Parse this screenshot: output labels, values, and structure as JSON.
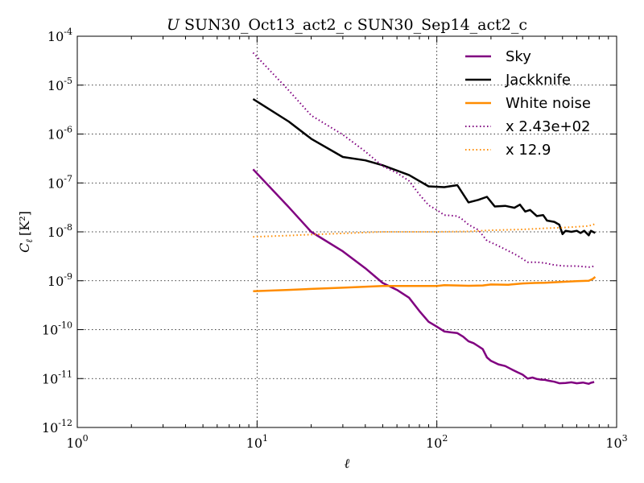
{
  "chart_data": {
    "type": "line",
    "title": "U SUN30_Oct13_act2_c SUN30_Sep14_act2_c",
    "title_symbol": "U",
    "title_rest": "SUN30_Oct13_act2_c SUN30_Sep14_act2_c",
    "xlabel": "ℓ",
    "ylabel_base": "C",
    "ylabel_sub": "ℓ",
    "ylabel_units": "[K²]",
    "xscale": "log",
    "yscale": "log",
    "xlim": [
      1,
      1000
    ],
    "ylim": [
      1e-12,
      0.0001
    ],
    "grid": true,
    "legend_position": "top-right",
    "x_ticks": [
      {
        "value": 1,
        "base": "10",
        "exp": "0"
      },
      {
        "value": 10,
        "base": "10",
        "exp": "1"
      },
      {
        "value": 100,
        "base": "10",
        "exp": "2"
      },
      {
        "value": 1000,
        "base": "10",
        "exp": "3"
      }
    ],
    "y_ticks": [
      {
        "value": 1e-12,
        "base": "10",
        "exp": "-12"
      },
      {
        "value": 1e-11,
        "base": "10",
        "exp": "-11"
      },
      {
        "value": 1e-10,
        "base": "10",
        "exp": "-10"
      },
      {
        "value": 1e-09,
        "base": "10",
        "exp": "-9"
      },
      {
        "value": 1e-08,
        "base": "10",
        "exp": "-8"
      },
      {
        "value": 1e-07,
        "base": "10",
        "exp": "-7"
      },
      {
        "value": 1e-06,
        "base": "10",
        "exp": "-6"
      },
      {
        "value": 1e-05,
        "base": "10",
        "exp": "-5"
      },
      {
        "value": 0.0001,
        "base": "10",
        "exp": "-4"
      }
    ],
    "series": [
      {
        "name": "Sky",
        "color": "#800080",
        "style": "solid",
        "points": [
          [
            9.5,
            1.9e-07
          ],
          [
            15,
            3.2e-08
          ],
          [
            20,
            1e-08
          ],
          [
            30,
            4e-09
          ],
          [
            40,
            1.8e-09
          ],
          [
            50,
            9e-10
          ],
          [
            60,
            6.5e-10
          ],
          [
            70,
            4.5e-10
          ],
          [
            80,
            2.4e-10
          ],
          [
            90,
            1.45e-10
          ],
          [
            100,
            1.15e-10
          ],
          [
            110,
            9.2e-11
          ],
          [
            120,
            8.8e-11
          ],
          [
            130,
            8.5e-11
          ],
          [
            140,
            7.2e-11
          ],
          [
            150,
            5.8e-11
          ],
          [
            160,
            5.3e-11
          ],
          [
            170,
            4.6e-11
          ],
          [
            180,
            4e-11
          ],
          [
            190,
            2.7e-11
          ],
          [
            200,
            2.3e-11
          ],
          [
            220,
            1.95e-11
          ],
          [
            240,
            1.8e-11
          ],
          [
            260,
            1.55e-11
          ],
          [
            280,
            1.35e-11
          ],
          [
            300,
            1.2e-11
          ],
          [
            320,
            1e-11
          ],
          [
            340,
            1.05e-11
          ],
          [
            360,
            9.8e-12
          ],
          [
            380,
            9.5e-12
          ],
          [
            400,
            9.4e-12
          ],
          [
            420,
            9e-12
          ],
          [
            450,
            8.6e-12
          ],
          [
            480,
            8e-12
          ],
          [
            520,
            8.1e-12
          ],
          [
            560,
            8.4e-12
          ],
          [
            600,
            8e-12
          ],
          [
            650,
            8.3e-12
          ],
          [
            700,
            7.8e-12
          ],
          [
            720,
            8.2e-12
          ],
          [
            750,
            8.5e-12
          ]
        ]
      },
      {
        "name": "Jackknife",
        "color": "#000000",
        "style": "solid",
        "points": [
          [
            9.5,
            5.2e-06
          ],
          [
            15,
            1.8e-06
          ],
          [
            20,
            8e-07
          ],
          [
            30,
            3.4e-07
          ],
          [
            40,
            2.9e-07
          ],
          [
            50,
            2.3e-07
          ],
          [
            70,
            1.45e-07
          ],
          [
            90,
            8.5e-08
          ],
          [
            110,
            8.2e-08
          ],
          [
            130,
            9e-08
          ],
          [
            150,
            4e-08
          ],
          [
            170,
            4.5e-08
          ],
          [
            190,
            5.2e-08
          ],
          [
            210,
            3.3e-08
          ],
          [
            240,
            3.4e-08
          ],
          [
            270,
            3.1e-08
          ],
          [
            290,
            3.6e-08
          ],
          [
            310,
            2.6e-08
          ],
          [
            330,
            2.8e-08
          ],
          [
            360,
            2.1e-08
          ],
          [
            390,
            2.2e-08
          ],
          [
            410,
            1.7e-08
          ],
          [
            450,
            1.6e-08
          ],
          [
            480,
            1.4e-08
          ],
          [
            500,
            9e-09
          ],
          [
            520,
            1.05e-08
          ],
          [
            560,
            1e-08
          ],
          [
            600,
            1.05e-08
          ],
          [
            630,
            9.5e-09
          ],
          [
            660,
            1.05e-08
          ],
          [
            700,
            8.5e-09
          ],
          [
            720,
            1.05e-08
          ],
          [
            760,
            9.5e-09
          ]
        ]
      },
      {
        "name": "White noise",
        "color": "#ff8c00",
        "style": "solid",
        "points": [
          [
            9.5,
            6.1e-10
          ],
          [
            15,
            6.5e-10
          ],
          [
            20,
            6.8e-10
          ],
          [
            30,
            7.2e-10
          ],
          [
            50,
            7.8e-10
          ],
          [
            70,
            7.8e-10
          ],
          [
            100,
            7.8e-10
          ],
          [
            110,
            8.1e-10
          ],
          [
            130,
            8e-10
          ],
          [
            150,
            7.9e-10
          ],
          [
            180,
            8e-10
          ],
          [
            200,
            8.4e-10
          ],
          [
            250,
            8.3e-10
          ],
          [
            300,
            8.8e-10
          ],
          [
            350,
            9e-10
          ],
          [
            400,
            9.1e-10
          ],
          [
            500,
            9.5e-10
          ],
          [
            600,
            9.8e-10
          ],
          [
            700,
            1e-09
          ],
          [
            740,
            1.1e-09
          ],
          [
            760,
            1.2e-09
          ]
        ]
      },
      {
        "name": "x 2.43e+02",
        "color": "#800080",
        "style": "dotted",
        "points": [
          [
            9.5,
            4.6e-05
          ],
          [
            15,
            7.8e-06
          ],
          [
            20,
            2.4e-06
          ],
          [
            30,
            9.7e-07
          ],
          [
            40,
            4.4e-07
          ],
          [
            50,
            2.2e-07
          ],
          [
            60,
            1.6e-07
          ],
          [
            70,
            1.1e-07
          ],
          [
            80,
            5.8e-08
          ],
          [
            90,
            3.5e-08
          ],
          [
            100,
            2.8e-08
          ],
          [
            110,
            2.2e-08
          ],
          [
            130,
            2.1e-08
          ],
          [
            140,
            1.75e-08
          ],
          [
            150,
            1.4e-08
          ],
          [
            170,
            1.1e-08
          ],
          [
            190,
            6.6e-09
          ],
          [
            210,
            5.6e-09
          ],
          [
            240,
            4.4e-09
          ],
          [
            280,
            3.3e-09
          ],
          [
            320,
            2.4e-09
          ],
          [
            360,
            2.4e-09
          ],
          [
            400,
            2.3e-09
          ],
          [
            450,
            2.1e-09
          ],
          [
            520,
            2e-09
          ],
          [
            600,
            2e-09
          ],
          [
            700,
            1.9e-09
          ],
          [
            760,
            2e-09
          ]
        ]
      },
      {
        "name": "x 12.9",
        "color": "#ff8c00",
        "style": "dotted",
        "points": [
          [
            9.5,
            7.9e-09
          ],
          [
            15,
            8.4e-09
          ],
          [
            20,
            8.8e-09
          ],
          [
            30,
            9.3e-09
          ],
          [
            50,
            1e-08
          ],
          [
            100,
            1e-08
          ],
          [
            150,
            1.02e-08
          ],
          [
            200,
            1.08e-08
          ],
          [
            300,
            1.12e-08
          ],
          [
            400,
            1.18e-08
          ],
          [
            500,
            1.22e-08
          ],
          [
            600,
            1.27e-08
          ],
          [
            700,
            1.32e-08
          ],
          [
            760,
            1.45e-08
          ]
        ]
      }
    ]
  }
}
